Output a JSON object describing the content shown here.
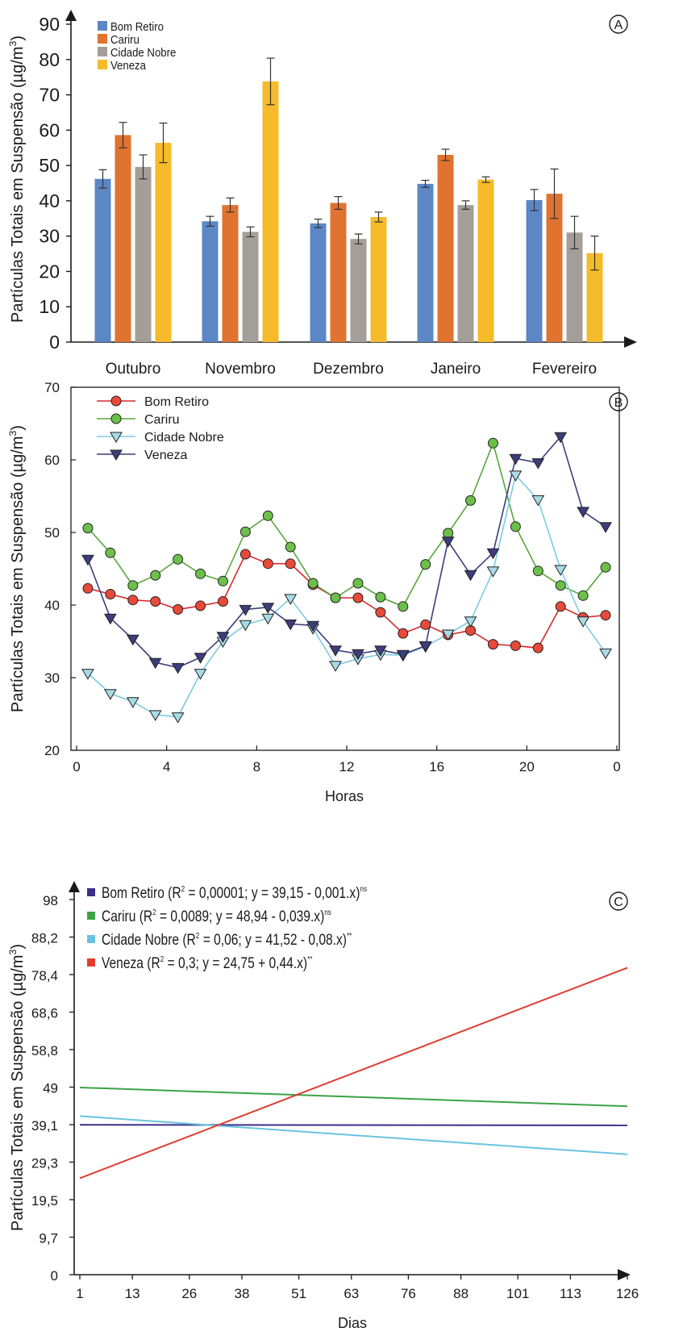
{
  "panels": {
    "A": {
      "letter": "A"
    },
    "B": {
      "letter": "B"
    },
    "C": {
      "letter": "C"
    }
  },
  "chart_data": [
    {
      "panel": "A",
      "type": "bar",
      "ylabel": "Partículas Totais em Suspensão (µg/m³)",
      "ylabel_parts": {
        "main": "Partículas Totais em Suspensão (µg/m",
        "sup": "3",
        "close": ")"
      },
      "ylim": [
        0,
        90
      ],
      "yticks": [
        0,
        10,
        20,
        30,
        40,
        50,
        60,
        70,
        80,
        90
      ],
      "categories": [
        "Outubro",
        "Novembro",
        "Dezembro",
        "Janeiro",
        "Fevereiro"
      ],
      "legend_position": "top-left",
      "grid": false,
      "error_bars": true,
      "series": [
        {
          "name": "Bom Retiro",
          "color": "#5b87c5",
          "values": [
            46.2,
            34.2,
            33.6,
            44.8,
            40.2
          ],
          "errors": [
            2.6,
            1.4,
            1.2,
            1.0,
            3.0
          ]
        },
        {
          "name": "Cariru",
          "color": "#e07330",
          "values": [
            58.6,
            38.8,
            39.4,
            53.0,
            42.0
          ],
          "errors": [
            3.6,
            2.0,
            1.8,
            1.6,
            7.0
          ]
        },
        {
          "name": "Cidade Nobre",
          "color": "#a49e98",
          "values": [
            49.6,
            31.2,
            29.2,
            38.8,
            31.0
          ],
          "errors": [
            3.4,
            1.4,
            1.4,
            1.2,
            4.6
          ]
        },
        {
          "name": "Veneza",
          "color": "#f5bb2a",
          "values": [
            56.4,
            73.8,
            35.4,
            46.0,
            25.2
          ],
          "errors": [
            5.6,
            6.6,
            1.4,
            0.8,
            4.8
          ]
        }
      ]
    },
    {
      "panel": "B",
      "type": "line",
      "xlabel": "Horas",
      "ylabel": "Partículas Totais em Suspensão (µg/m³)",
      "ylabel_parts": {
        "main": "Partículas Totais em Suspensão (µg/m",
        "sup": "3",
        "close": ")"
      },
      "ylim": [
        20,
        70
      ],
      "yticks": [
        20,
        30,
        40,
        50,
        60,
        70
      ],
      "xtick_labels": [
        "0",
        "4",
        "8",
        "12",
        "16",
        "20",
        "0"
      ],
      "x": [
        0.5,
        1.5,
        2.5,
        3.5,
        4.5,
        5.5,
        6.5,
        7.5,
        8.5,
        9.5,
        10.5,
        11.5,
        12.5,
        13.5,
        14.5,
        15.5,
        16.5,
        17.5,
        18.5,
        19.5,
        20.5,
        21.5,
        22.5,
        23.5
      ],
      "legend_position": "top-left",
      "grid": false,
      "series": [
        {
          "name": "Bom Retiro",
          "color": "#d62a2a",
          "fill": "#e84a3a",
          "marker": "circle",
          "values": [
            42.3,
            41.5,
            40.7,
            40.5,
            39.4,
            39.9,
            40.5,
            47.0,
            45.7,
            45.7,
            42.8,
            41.0,
            41.0,
            39.0,
            36.1,
            37.3,
            35.9,
            36.5,
            34.6,
            34.4,
            34.1,
            39.8,
            38.3,
            38.6
          ]
        },
        {
          "name": "Cariru",
          "color": "#55a83a",
          "fill": "#6cc04a",
          "marker": "circle",
          "values": [
            50.6,
            47.2,
            42.7,
            44.1,
            46.3,
            44.3,
            43.3,
            50.1,
            52.3,
            48.0,
            43.0,
            41.0,
            43.0,
            41.1,
            39.8,
            45.6,
            49.9,
            54.4,
            62.3,
            50.8,
            44.7,
            42.7,
            41.3,
            45.2
          ]
        },
        {
          "name": "Cidade Nobre",
          "color": "#7ecae0",
          "fill": "#a8dbe6",
          "marker": "triangle-down",
          "values": [
            30.6,
            27.8,
            26.7,
            24.9,
            24.6,
            30.6,
            35.0,
            37.3,
            38.2,
            40.9,
            36.8,
            31.7,
            32.6,
            33.2,
            33.1,
            34.3,
            36.0,
            37.8,
            44.7,
            57.9,
            54.5,
            44.9,
            37.8,
            33.4
          ]
        },
        {
          "name": "Veneza",
          "color": "#3c3d7c",
          "fill": "#3c3d7c",
          "marker": "triangle-down",
          "values": [
            46.3,
            38.2,
            35.3,
            32.1,
            31.4,
            32.8,
            35.7,
            39.4,
            39.7,
            37.4,
            37.2,
            33.8,
            33.3,
            33.8,
            33.2,
            34.4,
            48.8,
            44.2,
            47.2,
            60.2,
            59.6,
            63.2,
            52.9,
            50.8
          ]
        }
      ]
    },
    {
      "panel": "C",
      "type": "line",
      "xlabel": "Dias",
      "ylabel": "Partículas Totais em Suspensão (µg/m³)",
      "ylabel_parts": {
        "main": "Partículas Totais em Suspensão (µg/m",
        "sup": "3",
        "close": ")"
      },
      "xlim": [
        1,
        126
      ],
      "ylim": [
        0,
        98
      ],
      "xticks": [
        1,
        13,
        26,
        38,
        51,
        63,
        76,
        88,
        101,
        113,
        126
      ],
      "ytick_labels": [
        "0",
        "9,7",
        "19,5",
        "29,3",
        "39,1",
        "49",
        "58,8",
        "68,6",
        "78,4",
        "88,2",
        "98"
      ],
      "legend_position": "top-left",
      "grid": false,
      "series": [
        {
          "name": "Bom Retiro",
          "color": "#3b2f8c",
          "legend_parts": [
            "Bom Retiro (R",
            "2",
            " = 0,00001; y = 39,15 - 0,001.x)",
            "ns"
          ],
          "x": [
            1,
            126
          ],
          "values": [
            39.15,
            39.02
          ]
        },
        {
          "name": "Cariru",
          "color": "#3aa444",
          "legend_parts": [
            "Cariru (R",
            "2",
            " = 0,0089; y = 48,94 - 0,039.x)",
            "ns"
          ],
          "x": [
            1,
            126
          ],
          "values": [
            48.9,
            44.0
          ]
        },
        {
          "name": "Cidade Nobre",
          "color": "#69c3df",
          "legend_parts": [
            "Cidade Nobre (R",
            "2",
            " = 0,06; y = 41,52 - 0,08.x)",
            "**"
          ],
          "x": [
            1,
            126
          ],
          "values": [
            41.44,
            31.44
          ]
        },
        {
          "name": "Veneza",
          "color": "#e03d30",
          "legend_parts": [
            "Veneza (R",
            "2",
            " = 0,3; y = 24,75 + 0,44.x)",
            "**"
          ],
          "x": [
            1,
            126
          ],
          "values": [
            25.19,
            80.19
          ]
        }
      ]
    }
  ]
}
